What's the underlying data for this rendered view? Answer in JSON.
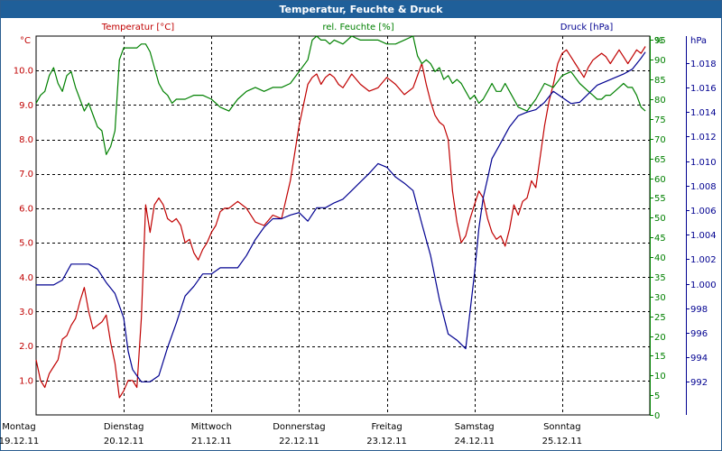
{
  "title": "Temperatur, Feuchte & Druck",
  "colors": {
    "temperature": "#c00000",
    "humidity": "#008000",
    "pressure": "#000090",
    "title_bg": "#1f5f99",
    "grid": "#000000"
  },
  "chart_data": {
    "type": "line",
    "title": "Temperatur, Feuchte & Druck",
    "x_labels": [
      {
        "day": "Montag",
        "date": "19.12.11"
      },
      {
        "day": "Dienstag",
        "date": "20.12.11"
      },
      {
        "day": "Mittwoch",
        "date": "21.12.11"
      },
      {
        "day": "Donnerstag",
        "date": "22.12.11"
      },
      {
        "day": "Freitag",
        "date": "23.12.11"
      },
      {
        "day": "Samstag",
        "date": "24.12.11"
      },
      {
        "day": "Sonntag",
        "date": "25.12.11"
      }
    ],
    "xlim": [
      0,
      7
    ],
    "grid": true,
    "axes": {
      "temperature": {
        "label": "Temperatur [°C]",
        "unit": "°C",
        "ylim": [
          0,
          11
        ],
        "ticks": [
          "1.0",
          "2.0",
          "3.0",
          "4.0",
          "5.0",
          "6.0",
          "7.0",
          "8.0",
          "9.0",
          "10.0"
        ]
      },
      "humidity": {
        "label": "rel. Feuchte [%]",
        "unit": "%",
        "ylim": [
          0,
          96
        ],
        "ticks": [
          "0",
          "5",
          "10",
          "15",
          "20",
          "25",
          "30",
          "35",
          "40",
          "45",
          "50",
          "55",
          "60",
          "65",
          "70",
          "75",
          "80",
          "85",
          "90",
          "95"
        ]
      },
      "pressure": {
        "label": "Druck [hPa]",
        "unit": "hPa",
        "ylim": [
          989.3,
          1020.2
        ],
        "ticks": [
          "992",
          "994",
          "996",
          "998",
          "1.000",
          "1.002",
          "1.004",
          "1.006",
          "1.008",
          "1.010",
          "1.012",
          "1.014",
          "1.016",
          "1.018"
        ]
      }
    },
    "series": [
      {
        "name": "Temperatur [°C]",
        "axis": "temperature",
        "x": [
          0,
          0.05,
          0.1,
          0.15,
          0.2,
          0.25,
          0.3,
          0.35,
          0.4,
          0.45,
          0.5,
          0.55,
          0.6,
          0.65,
          0.7,
          0.75,
          0.8,
          0.85,
          0.9,
          0.95,
          1.0,
          1.05,
          1.1,
          1.15,
          1.2,
          1.25,
          1.3,
          1.35,
          1.4,
          1.45,
          1.5,
          1.55,
          1.6,
          1.65,
          1.7,
          1.75,
          1.8,
          1.85,
          1.9,
          1.95,
          2.0,
          2.05,
          2.1,
          2.15,
          2.2,
          2.3,
          2.4,
          2.5,
          2.6,
          2.7,
          2.8,
          2.9,
          3.0,
          3.1,
          3.15,
          3.2,
          3.25,
          3.3,
          3.35,
          3.4,
          3.45,
          3.5,
          3.55,
          3.6,
          3.7,
          3.8,
          3.9,
          4.0,
          4.1,
          4.2,
          4.3,
          4.4,
          4.45,
          4.5,
          4.55,
          4.6,
          4.65,
          4.7,
          4.75,
          4.8,
          4.85,
          4.9,
          4.95,
          5.0,
          5.05,
          5.1,
          5.15,
          5.2,
          5.25,
          5.3,
          5.35,
          5.4,
          5.45,
          5.5,
          5.55,
          5.6,
          5.65,
          5.7,
          5.75,
          5.8,
          5.85,
          5.9,
          5.95,
          6.0,
          6.05,
          6.1,
          6.15,
          6.2,
          6.25,
          6.3,
          6.35,
          6.4,
          6.45,
          6.5,
          6.55,
          6.6,
          6.65,
          6.7,
          6.75,
          6.8,
          6.85,
          6.9,
          6.95
        ],
        "values": [
          1.6,
          1.0,
          0.8,
          1.2,
          1.4,
          1.6,
          2.2,
          2.3,
          2.6,
          2.8,
          3.3,
          3.7,
          3.0,
          2.5,
          2.6,
          2.7,
          2.9,
          2.1,
          1.5,
          0.5,
          0.7,
          1.0,
          1.0,
          0.8,
          2.8,
          6.1,
          5.3,
          6.1,
          6.3,
          6.1,
          5.7,
          5.6,
          5.7,
          5.5,
          5.0,
          5.1,
          4.7,
          4.5,
          4.8,
          5.0,
          5.3,
          5.5,
          5.9,
          6.0,
          6.0,
          6.2,
          6.0,
          5.6,
          5.5,
          5.8,
          5.7,
          6.8,
          8.4,
          9.6,
          9.8,
          9.9,
          9.6,
          9.8,
          9.9,
          9.8,
          9.6,
          9.5,
          9.7,
          9.9,
          9.6,
          9.4,
          9.5,
          9.8,
          9.6,
          9.3,
          9.5,
          10.2,
          9.6,
          9.1,
          8.7,
          8.5,
          8.4,
          8.0,
          6.5,
          5.6,
          5.0,
          5.2,
          5.7,
          6.1,
          6.5,
          6.3,
          5.7,
          5.3,
          5.1,
          5.2,
          4.9,
          5.4,
          6.1,
          5.8,
          6.2,
          6.3,
          6.8,
          6.6,
          7.5,
          8.4,
          9.1,
          9.6,
          10.2,
          10.5,
          10.6,
          10.4,
          10.2,
          10.0,
          9.8,
          10.1,
          10.3,
          10.4,
          10.5,
          10.4,
          10.2,
          10.4,
          10.6,
          10.4,
          10.2,
          10.4,
          10.6,
          10.5,
          10.7
        ]
      },
      {
        "name": "rel. Feuchte [%]",
        "axis": "humidity",
        "x": [
          0,
          0.05,
          0.1,
          0.15,
          0.2,
          0.25,
          0.3,
          0.35,
          0.4,
          0.45,
          0.5,
          0.55,
          0.6,
          0.65,
          0.7,
          0.75,
          0.8,
          0.85,
          0.9,
          0.95,
          1.0,
          1.05,
          1.1,
          1.15,
          1.2,
          1.25,
          1.3,
          1.35,
          1.4,
          1.45,
          1.5,
          1.55,
          1.6,
          1.7,
          1.8,
          1.9,
          2.0,
          2.1,
          2.2,
          2.3,
          2.4,
          2.5,
          2.6,
          2.7,
          2.8,
          2.9,
          3.0,
          3.1,
          3.15,
          3.2,
          3.25,
          3.3,
          3.35,
          3.4,
          3.5,
          3.6,
          3.7,
          3.8,
          3.9,
          4.0,
          4.1,
          4.2,
          4.3,
          4.35,
          4.4,
          4.45,
          4.5,
          4.55,
          4.6,
          4.65,
          4.7,
          4.75,
          4.8,
          4.85,
          4.9,
          4.95,
          5.0,
          5.05,
          5.1,
          5.15,
          5.2,
          5.25,
          5.3,
          5.35,
          5.4,
          5.5,
          5.6,
          5.7,
          5.8,
          5.9,
          6.0,
          6.1,
          6.2,
          6.3,
          6.35,
          6.4,
          6.45,
          6.5,
          6.55,
          6.6,
          6.65,
          6.7,
          6.75,
          6.8,
          6.85,
          6.9,
          6.95
        ],
        "values": [
          79,
          81,
          82,
          86,
          88,
          84,
          82,
          86,
          87,
          83,
          80,
          77,
          79,
          76,
          73,
          72,
          66,
          68,
          72,
          90,
          93,
          93,
          93,
          93,
          94,
          94,
          92,
          88,
          84,
          82,
          81,
          79,
          80,
          80,
          81,
          81,
          80,
          78,
          77,
          80,
          82,
          83,
          82,
          83,
          83,
          84,
          87,
          90,
          95,
          96,
          95,
          95,
          94,
          95,
          94,
          96,
          95,
          95,
          95,
          94,
          94,
          95,
          96,
          91,
          89,
          90,
          89,
          87,
          88,
          85,
          86,
          84,
          85,
          84,
          82,
          80,
          81,
          79,
          80,
          82,
          84,
          82,
          82,
          84,
          82,
          78,
          77,
          80,
          84,
          83,
          86,
          87,
          84,
          82,
          81,
          80,
          80,
          81,
          81,
          82,
          83,
          84,
          83,
          83,
          81,
          78,
          77
        ]
      },
      {
        "name": "Druck [hPa]",
        "axis": "pressure",
        "x": [
          0,
          0.1,
          0.2,
          0.3,
          0.4,
          0.5,
          0.6,
          0.7,
          0.8,
          0.9,
          1.0,
          1.05,
          1.1,
          1.15,
          1.2,
          1.3,
          1.4,
          1.5,
          1.6,
          1.7,
          1.8,
          1.9,
          2.0,
          2.1,
          2.2,
          2.3,
          2.4,
          2.5,
          2.6,
          2.7,
          2.8,
          2.9,
          3.0,
          3.1,
          3.2,
          3.3,
          3.4,
          3.5,
          3.6,
          3.7,
          3.8,
          3.9,
          4.0,
          4.1,
          4.2,
          4.3,
          4.4,
          4.5,
          4.6,
          4.7,
          4.8,
          4.9,
          5.0,
          5.05,
          5.1,
          5.15,
          5.2,
          5.3,
          5.4,
          5.5,
          5.6,
          5.7,
          5.8,
          5.9,
          6.0,
          6.1,
          6.2,
          6.3,
          6.4,
          6.5,
          6.6,
          6.7,
          6.8,
          6.9,
          6.95
        ],
        "values": [
          999.9,
          999.9,
          999.9,
          1000.3,
          1001.6,
          1001.6,
          1001.6,
          1001.2,
          1000.1,
          999.2,
          997.2,
          994.5,
          993.0,
          992.5,
          992.0,
          992.0,
          992.5,
          994.8,
          996.8,
          999.0,
          999.8,
          1000.8,
          1000.8,
          1001.3,
          1001.3,
          1001.3,
          1002.3,
          1003.6,
          1004.6,
          1005.3,
          1005.3,
          1005.6,
          1005.8,
          1005.1,
          1006.2,
          1006.2,
          1006.6,
          1006.9,
          1007.6,
          1008.3,
          1009.0,
          1009.8,
          1009.5,
          1008.7,
          1008.2,
          1007.6,
          1004.9,
          1002.3,
          998.7,
          995.9,
          995.4,
          994.7,
          1000.8,
          1004.5,
          1007.0,
          1008.6,
          1010.2,
          1011.5,
          1012.8,
          1013.7,
          1014.0,
          1014.2,
          1014.8,
          1015.7,
          1015.2,
          1014.7,
          1014.8,
          1015.5,
          1016.2,
          1016.5,
          1016.8,
          1017.1,
          1017.5,
          1018.4,
          1018.9
        ]
      }
    ]
  }
}
